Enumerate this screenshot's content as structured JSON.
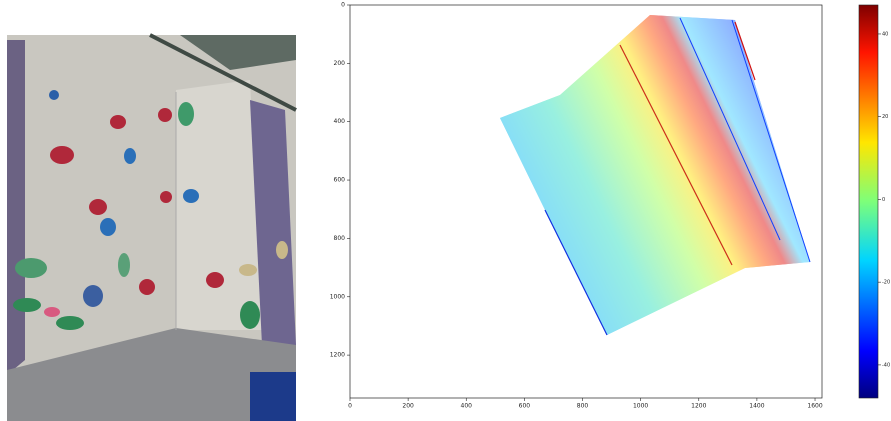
{
  "chart_data": {
    "type": "scatter",
    "xlim": [
      0,
      1624
    ],
    "xticks": [
      0,
      200,
      400,
      600,
      800,
      1000,
      1200,
      1400,
      1600
    ],
    "ylim": [
      1347,
      0
    ],
    "yticks": [
      0,
      200,
      400,
      600,
      800,
      1000,
      1200
    ],
    "clim": [
      -48,
      47
    ],
    "cticks": [
      40,
      20,
      0,
      -20,
      -40
    ]
  }
}
